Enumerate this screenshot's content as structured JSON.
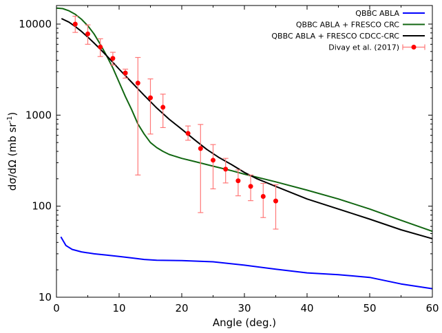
{
  "chart_data": {
    "type": "line",
    "xlabel": "Angle (deg.)",
    "ylabel_parts": [
      "dσ/dΩ (mb sr",
      "-1",
      ")"
    ],
    "xlim": [
      0,
      60
    ],
    "ylim": [
      10,
      16000
    ],
    "yscale": "log",
    "grid": false,
    "legend_position": "top-right",
    "x_ticks": [
      0,
      10,
      20,
      30,
      40,
      50,
      60
    ],
    "x_tick_labels": [
      "0",
      "10",
      "20",
      "30",
      "40",
      "50",
      "60"
    ],
    "y_ticks": [
      10,
      100,
      1000,
      10000
    ],
    "y_tick_labels": [
      "10",
      "100",
      "1000",
      "10000"
    ],
    "series": [
      {
        "name": "QBBC ABLA",
        "color": "#0000ff",
        "kind": "line",
        "x": [
          0.7,
          1.5,
          2.5,
          4,
          6,
          8,
          10,
          12,
          14,
          16,
          20,
          25,
          30,
          35,
          40,
          45,
          50,
          55,
          60
        ],
        "y": [
          46,
          37,
          33.5,
          31.5,
          30,
          29,
          28,
          27,
          26,
          25.5,
          25.3,
          24.5,
          22.5,
          20.3,
          18.5,
          17.7,
          16.5,
          14,
          12.4
        ]
      },
      {
        "name": "QBBC ABLA + FRESCO CRC",
        "color": "#116611",
        "kind": "line",
        "x": [
          0,
          1,
          2,
          3,
          4,
          5,
          6,
          7,
          8,
          9,
          10,
          11,
          12,
          13,
          14,
          15,
          16,
          17,
          18,
          20,
          22,
          25,
          28,
          30,
          35,
          40,
          45,
          50,
          55,
          60
        ],
        "y": [
          15000,
          14800,
          14000,
          12800,
          11300,
          9600,
          7800,
          6000,
          4500,
          3300,
          2300,
          1600,
          1150,
          800,
          620,
          500,
          440,
          400,
          370,
          335,
          310,
          275,
          245,
          225,
          185,
          150,
          120,
          93,
          70,
          53
        ]
      },
      {
        "name": "QBBC ABLA + FRESCO CDCC-CRC",
        "color": "#000000",
        "kind": "line",
        "x": [
          0.8,
          2,
          3,
          4,
          5,
          6,
          7,
          8,
          9,
          10,
          12,
          14,
          16,
          18,
          20,
          22,
          24,
          26,
          28,
          30,
          32,
          35,
          40,
          45,
          50,
          55,
          60
        ],
        "y": [
          11500,
          10500,
          9400,
          8300,
          7200,
          6200,
          5300,
          4500,
          3800,
          3200,
          2300,
          1650,
          1200,
          900,
          700,
          540,
          420,
          340,
          285,
          235,
          200,
          165,
          120,
          93,
          72,
          55,
          44
        ]
      },
      {
        "name": "Divay et al. (2017)",
        "color": "#ff0000",
        "errcolor": "#ff7777",
        "kind": "errorbar",
        "x": [
          3,
          5,
          7,
          9,
          11,
          13,
          15,
          17,
          21,
          23,
          25,
          27,
          29,
          31,
          33,
          35
        ],
        "y": [
          10000,
          7800,
          5600,
          4200,
          2900,
          2250,
          1550,
          1220,
          630,
          430,
          320,
          255,
          190,
          165,
          128,
          114
        ],
        "ylo": [
          8100,
          6000,
          4400,
          3550,
          2550,
          220,
          620,
          730,
          530,
          85,
          155,
          180,
          130,
          115,
          75,
          56
        ],
        "yhi": [
          12200,
          9800,
          6900,
          4900,
          3200,
          4300,
          2500,
          1700,
          760,
          790,
          475,
          335,
          250,
          220,
          178,
          172
        ]
      }
    ]
  }
}
